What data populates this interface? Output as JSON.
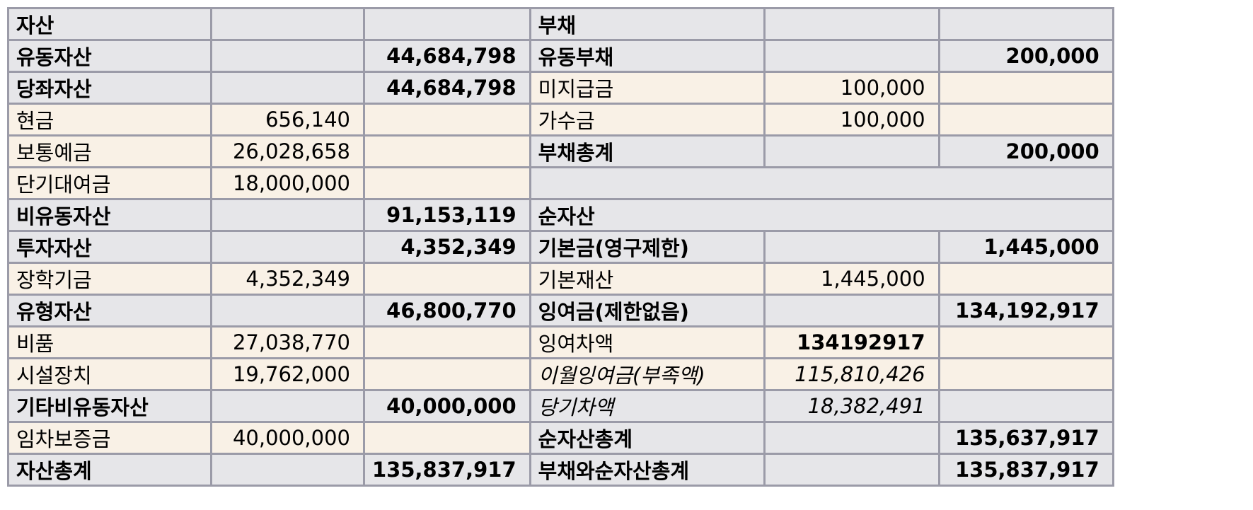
{
  "rows": [
    {
      "c1": "자산",
      "c2": "",
      "c3": "",
      "c4": "부채",
      "c5": "",
      "c6": ""
    },
    {
      "c1": "유동자산",
      "c2": "",
      "c3": "44,684,798",
      "c4": "유동부채",
      "c5": "",
      "c6": "200,000"
    },
    {
      "c1": "당좌자산",
      "c2": "",
      "c3": "44,684,798",
      "c4": "미지급금",
      "c5": "100,000",
      "c6": ""
    },
    {
      "c1": "현금",
      "c2": "656,140",
      "c3": "",
      "c4": "가수금",
      "c5": "100,000",
      "c6": ""
    },
    {
      "c1": "보통예금",
      "c2": "26,028,658",
      "c3": "",
      "c4": "부채총계",
      "c5": "",
      "c6": "200,000"
    },
    {
      "c1": "단기대여금",
      "c2": "18,000,000",
      "c3": "",
      "c4": ""
    },
    {
      "c1": "비유동자산",
      "c2": "",
      "c3": "91,153,119",
      "c4": "순자산"
    },
    {
      "c1": "투자자산",
      "c2": "",
      "c3": "4,352,349",
      "c4": "기본금(영구제한)",
      "c5": "",
      "c6": "1,445,000"
    },
    {
      "c1": "장학기금",
      "c2": "4,352,349",
      "c3": "",
      "c4": "기본재산",
      "c5": "1,445,000",
      "c6": ""
    },
    {
      "c1": "유형자산",
      "c2": "",
      "c3": "46,800,770",
      "c4": "잉여금(제한없음)",
      "c5": "",
      "c6": "134,192,917"
    },
    {
      "c1": "비품",
      "c2": "27,038,770",
      "c3": "",
      "c4": "잉여차액",
      "c5": "134192917",
      "c6": ""
    },
    {
      "c1": "시설장치",
      "c2": "19,762,000",
      "c3": "",
      "c4": "이월잉여금(부족액)",
      "c5": "115,810,426",
      "c6": ""
    },
    {
      "c1": "기타비유동자산",
      "c2": "",
      "c3": "40,000,000",
      "c4": "당기차액",
      "c5": "18,382,491",
      "c6": ""
    },
    {
      "c1": "임차보증금",
      "c2": "40,000,000",
      "c3": "",
      "c4": "순자산총계",
      "c5": "",
      "c6": "135,637,917"
    },
    {
      "c1": "자산총계",
      "c2": "",
      "c3": "135,837,917",
      "c4": "부채와순자산총계",
      "c5": "",
      "c6": "135,837,917"
    }
  ]
}
